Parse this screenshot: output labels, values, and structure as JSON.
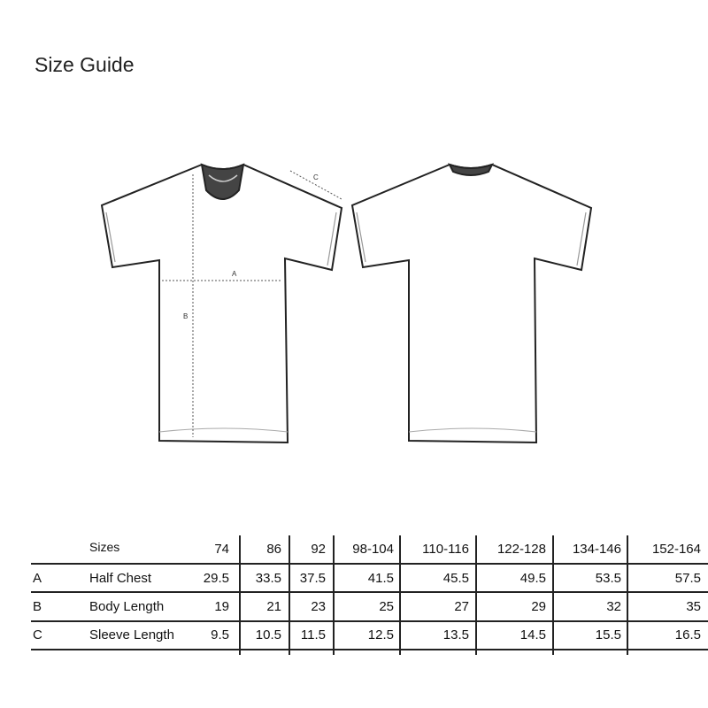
{
  "title": "Size Guide",
  "diagram": {
    "labels": {
      "a": "A",
      "b": "B",
      "c": "C"
    }
  },
  "table": {
    "header_label": "Sizes",
    "sizes": [
      "74",
      "86",
      "92",
      "98-104",
      "110-116",
      "122-128",
      "134-146",
      "152-164"
    ],
    "rows": [
      {
        "code": "A",
        "label": "Half Chest",
        "values": [
          "29.5",
          "33.5",
          "37.5",
          "41.5",
          "45.5",
          "49.5",
          "53.5",
          "57.5"
        ]
      },
      {
        "code": "B",
        "label": "Body Length",
        "values": [
          "19",
          "21",
          "23",
          "25",
          "27",
          "29",
          "32",
          "35"
        ]
      },
      {
        "code": "C",
        "label": "Sleeve Length",
        "values": [
          "9.5",
          "10.5",
          "11.5",
          "12.5",
          "13.5",
          "14.5",
          "15.5",
          "16.5"
        ]
      }
    ]
  }
}
